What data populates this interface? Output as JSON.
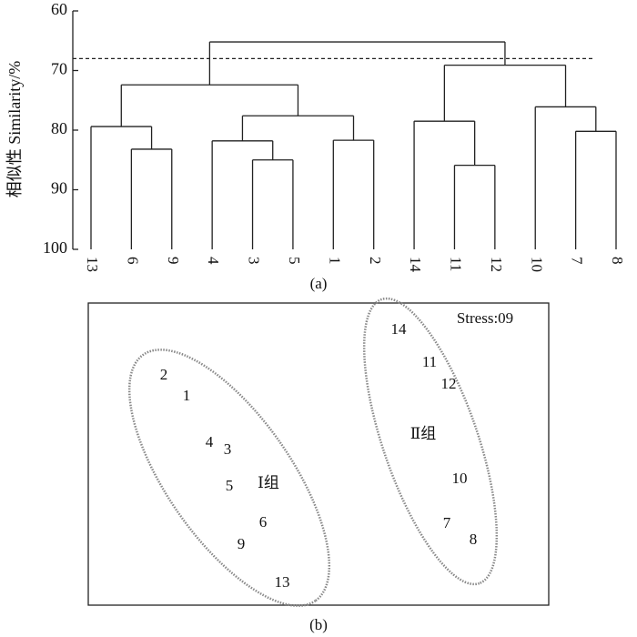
{
  "chart_data": [
    {
      "type": "dendrogram",
      "ylabel": "相似性 Similarity/%",
      "caption": "(a)",
      "ylim": [
        60,
        100
      ],
      "yticks": [
        60,
        70,
        80,
        90,
        100
      ],
      "cutoff": 68,
      "leaves": [
        "13",
        "6",
        "9",
        "4",
        "3",
        "5",
        "1",
        "2",
        "14",
        "11",
        "12",
        "10",
        "7",
        "8"
      ],
      "merges": [
        {
          "children": [
            1,
            2
          ],
          "height": 83.2
        },
        {
          "children": [
            0,
            14
          ],
          "height": 79.4
        },
        {
          "children": [
            4,
            5
          ],
          "height": 85
        },
        {
          "children": [
            3,
            16
          ],
          "height": 81.8
        },
        {
          "children": [
            6,
            7
          ],
          "height": 81.7
        },
        {
          "children": [
            17,
            18
          ],
          "height": 77.6
        },
        {
          "children": [
            15,
            19
          ],
          "height": 72.4
        },
        {
          "children": [
            9,
            10
          ],
          "height": 85.9
        },
        {
          "children": [
            8,
            21
          ],
          "height": 78.5
        },
        {
          "children": [
            12,
            13
          ],
          "height": 80.2
        },
        {
          "children": [
            11,
            23
          ],
          "height": 76.1
        },
        {
          "children": [
            22,
            24
          ],
          "height": 69.1
        },
        {
          "children": [
            20,
            25
          ],
          "height": 65.2
        }
      ]
    },
    {
      "type": "ordination",
      "caption": "(b)",
      "stress": "Stress:09",
      "groups": [
        "Ⅰ组",
        "Ⅱ组"
      ],
      "points": [
        "2",
        "1",
        "4",
        "3",
        "5",
        "6",
        "9",
        "13",
        "14",
        "11",
        "12",
        "10",
        "7",
        "8"
      ]
    }
  ]
}
